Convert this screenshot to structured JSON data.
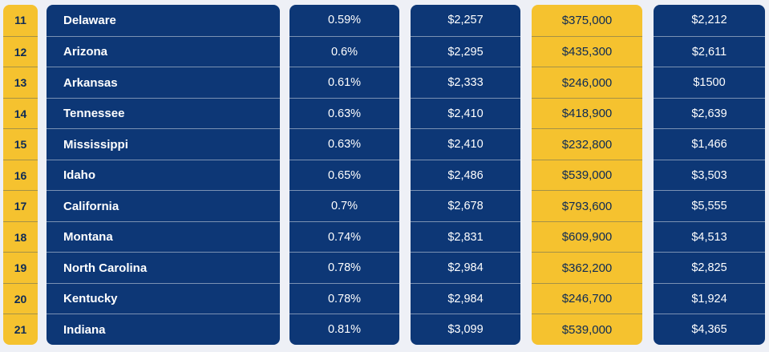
{
  "rows": [
    {
      "rank": "11",
      "state": "Delaware",
      "tax_rate": "0.59%",
      "annual_tax": "$2,257",
      "home_value": "$375,000",
      "last_col": "$2,212"
    },
    {
      "rank": "12",
      "state": "Arizona",
      "tax_rate": "0.6%",
      "annual_tax": "$2,295",
      "home_value": "$435,300",
      "last_col": "$2,611"
    },
    {
      "rank": "13",
      "state": "Arkansas",
      "tax_rate": "0.61%",
      "annual_tax": "$2,333",
      "home_value": "$246,000",
      "last_col": "$1500"
    },
    {
      "rank": "14",
      "state": "Tennessee",
      "tax_rate": "0.63%",
      "annual_tax": "$2,410",
      "home_value": "$418,900",
      "last_col": "$2,639"
    },
    {
      "rank": "15",
      "state": "Mississippi",
      "tax_rate": "0.63%",
      "annual_tax": "$2,410",
      "home_value": "$232,800",
      "last_col": "$1,466"
    },
    {
      "rank": "16",
      "state": "Idaho",
      "tax_rate": "0.65%",
      "annual_tax": "$2,486",
      "home_value": "$539,000",
      "last_col": "$3,503"
    },
    {
      "rank": "17",
      "state": "California",
      "tax_rate": "0.7%",
      "annual_tax": "$2,678",
      "home_value": "$793,600",
      "last_col": "$5,555"
    },
    {
      "rank": "18",
      "state": "Montana",
      "tax_rate": "0.74%",
      "annual_tax": "$2,831",
      "home_value": "$609,900",
      "last_col": "$4,513"
    },
    {
      "rank": "19",
      "state": "North Carolina",
      "tax_rate": "0.78%",
      "annual_tax": "$2,984",
      "home_value": "$362,200",
      "last_col": "$2,825"
    },
    {
      "rank": "20",
      "state": "Kentucky",
      "tax_rate": "0.78%",
      "annual_tax": "$2,984",
      "home_value": "$246,700",
      "last_col": "$1,924"
    },
    {
      "rank": "21",
      "state": "Indiana",
      "tax_rate": "0.81%",
      "annual_tax": "$3,099",
      "home_value": "$539,000",
      "last_col": "$4,365"
    }
  ],
  "colors": {
    "navy": "#0d3776",
    "gold": "#f5c22f",
    "background": "#eef0f6"
  }
}
